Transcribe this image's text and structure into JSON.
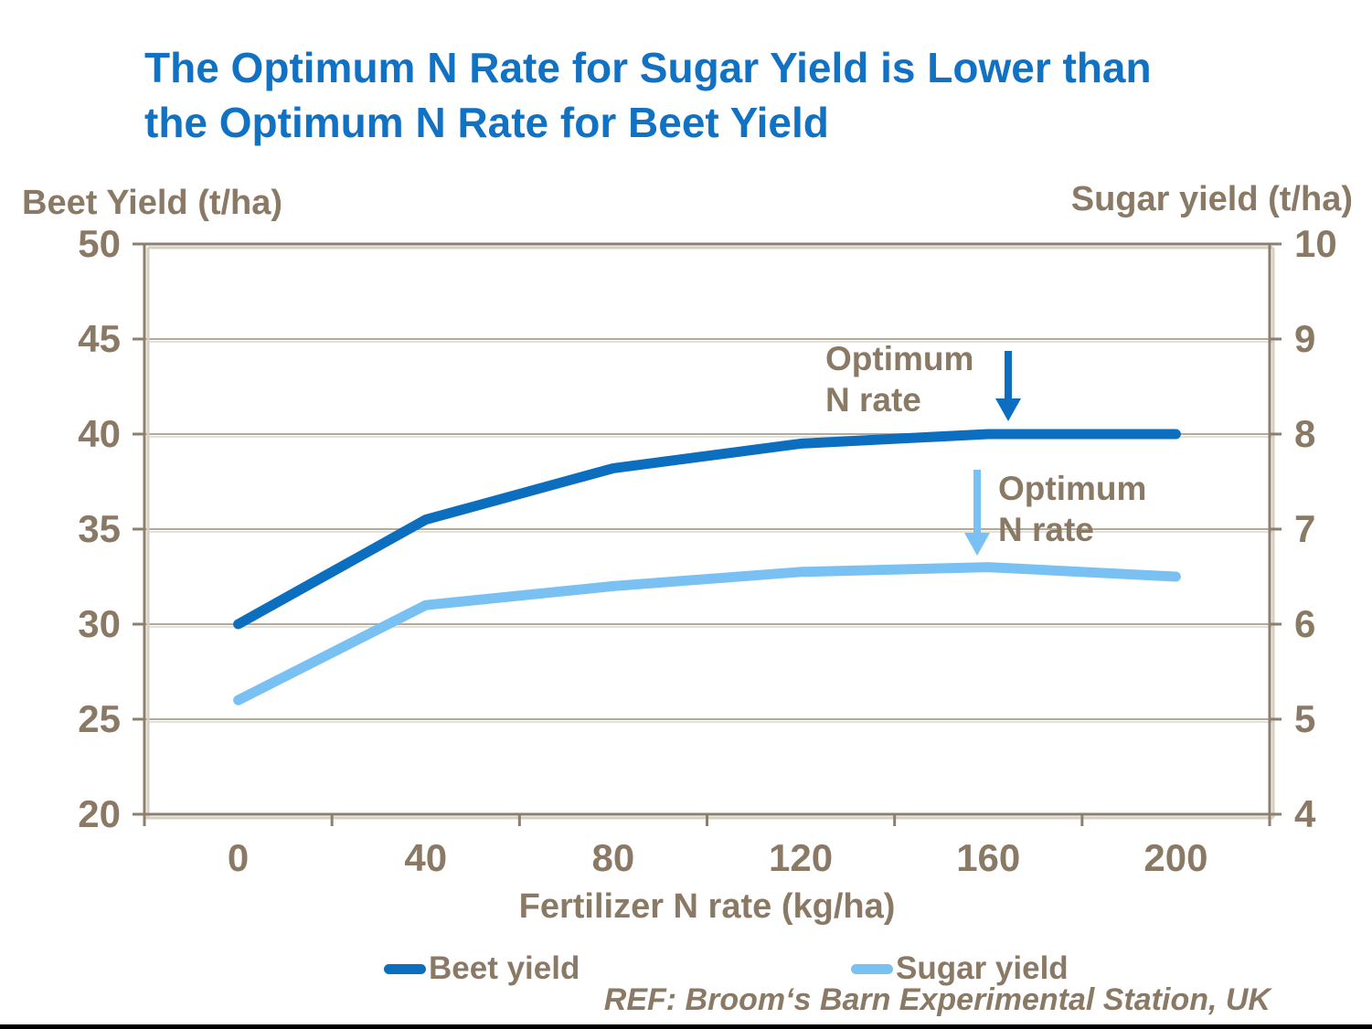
{
  "title": {
    "line1": "The Optimum N Rate for Sugar Yield is Lower than",
    "line2": "the Optimum N Rate for Beet Yield"
  },
  "footer": {
    "ref": "REF: Broom‘s Barn Experimental Station, UK"
  },
  "colors": {
    "title_blue": "#1172C4",
    "text_brown": "#8A7964",
    "gridline": "#B4A896",
    "gridline_shadow": "#E6E1D7",
    "axis": "#8C7F6D",
    "axis_shadow": "#D5CFC2",
    "beet_blue": "#0B6EBE",
    "sugar_blue": "#79C1F3",
    "bottom_bar": "#000000"
  },
  "chart_data": {
    "type": "line",
    "title": "The Optimum N Rate for Sugar Yield is Lower than the Optimum N Rate for Beet Yield",
    "x": [
      0,
      40,
      80,
      120,
      160,
      200
    ],
    "xlabel": "Fertilizer N rate (kg/ha)",
    "left_axis": {
      "label": "Beet Yield (t/ha)",
      "ticks": [
        50,
        45,
        40,
        35,
        30,
        25,
        20
      ],
      "range": [
        20,
        50
      ]
    },
    "right_axis": {
      "label": "Sugar yield (t/ha)",
      "ticks": [
        10,
        9,
        8,
        7,
        6,
        5,
        4
      ],
      "range": [
        4,
        10
      ]
    },
    "series": [
      {
        "name": "Beet yield",
        "axis": "left",
        "color": "#0B6EBE",
        "values": [
          30,
          35.5,
          38.2,
          39.5,
          40,
          40
        ]
      },
      {
        "name": "Sugar yield",
        "axis": "right",
        "color": "#79C1F3",
        "values": [
          5.2,
          6.2,
          6.4,
          6.55,
          6.6,
          6.5
        ]
      }
    ],
    "annotations": [
      {
        "label": "Optimum\nN rate",
        "series": "Beet yield",
        "color": "#0B6EBE",
        "points_at_x": 165
      },
      {
        "label": "Optimum\nN rate",
        "series": "Sugar yield",
        "color": "#79C1F3",
        "points_at_x": 158
      }
    ],
    "grid": true,
    "legend_position": "bottom"
  }
}
